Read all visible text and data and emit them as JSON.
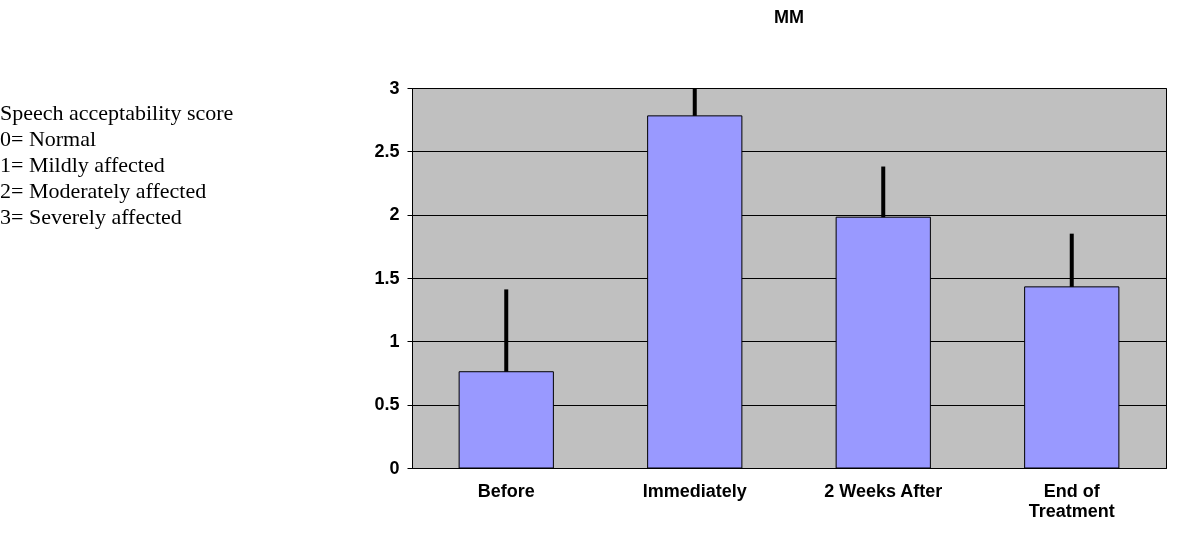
{
  "chart_data": {
    "type": "bar",
    "title": "MM",
    "categories": [
      "Before",
      "Immediately",
      "2 Weeks After",
      "End of Treatment"
    ],
    "values": [
      0.76,
      2.78,
      1.98,
      1.43
    ],
    "errors": [
      [
        0.76,
        1.41
      ],
      [
        2.78,
        3.0
      ],
      [
        1.98,
        2.38
      ],
      [
        1.43,
        1.85
      ]
    ],
    "color": "#9999ff",
    "ylim": [
      0,
      3
    ],
    "yticks": [
      0,
      0.5,
      1,
      1.5,
      2,
      2.5,
      3
    ],
    "grid": "y",
    "annotations": [
      "Speech acceptability score",
      "0= Normal",
      "1= Mildly affected",
      "2= Moderately affected",
      "3= Severely affected"
    ]
  }
}
